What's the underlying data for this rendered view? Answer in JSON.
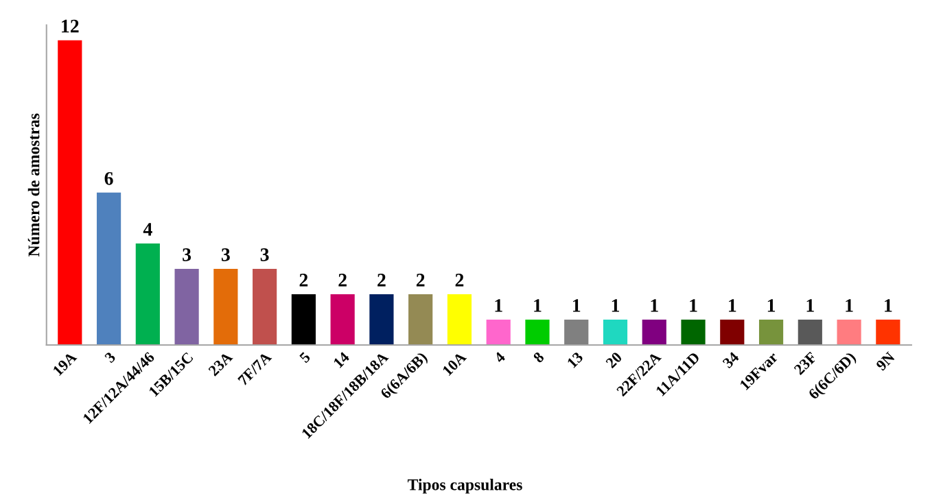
{
  "chart_data": {
    "type": "bar",
    "xlabel": "Tipos capsulares",
    "ylabel": "Número de amostras",
    "categories": [
      "19A",
      "3",
      "12F/12A/44/46",
      "15B/15C",
      "23A",
      "7F/7A",
      "5",
      "14",
      "18C/18F/18B/18A",
      "6(6A/6B)",
      "10A",
      "4",
      "8",
      "13",
      "20",
      "22F/22A",
      "11A/11D",
      "34",
      "19Fvar",
      "23F",
      "6(6C/6D)",
      "9N"
    ],
    "values": [
      12,
      6,
      4,
      3,
      3,
      3,
      2,
      2,
      2,
      2,
      2,
      1,
      1,
      1,
      1,
      1,
      1,
      1,
      1,
      1,
      1,
      1
    ],
    "colors": [
      "#ff0000",
      "#4f81bd",
      "#00b050",
      "#8064a2",
      "#e36c09",
      "#c0504d",
      "#000000",
      "#cc0066",
      "#002060",
      "#948a54",
      "#ffff00",
      "#ff66cc",
      "#00cc00",
      "#808080",
      "#1fd8c0",
      "#800080",
      "#006600",
      "#800000",
      "#77933c",
      "#595959",
      "#ff7c80",
      "#ff3300"
    ],
    "data_labels": true,
    "tick_labels": "x",
    "grid": false,
    "legend": false
  }
}
